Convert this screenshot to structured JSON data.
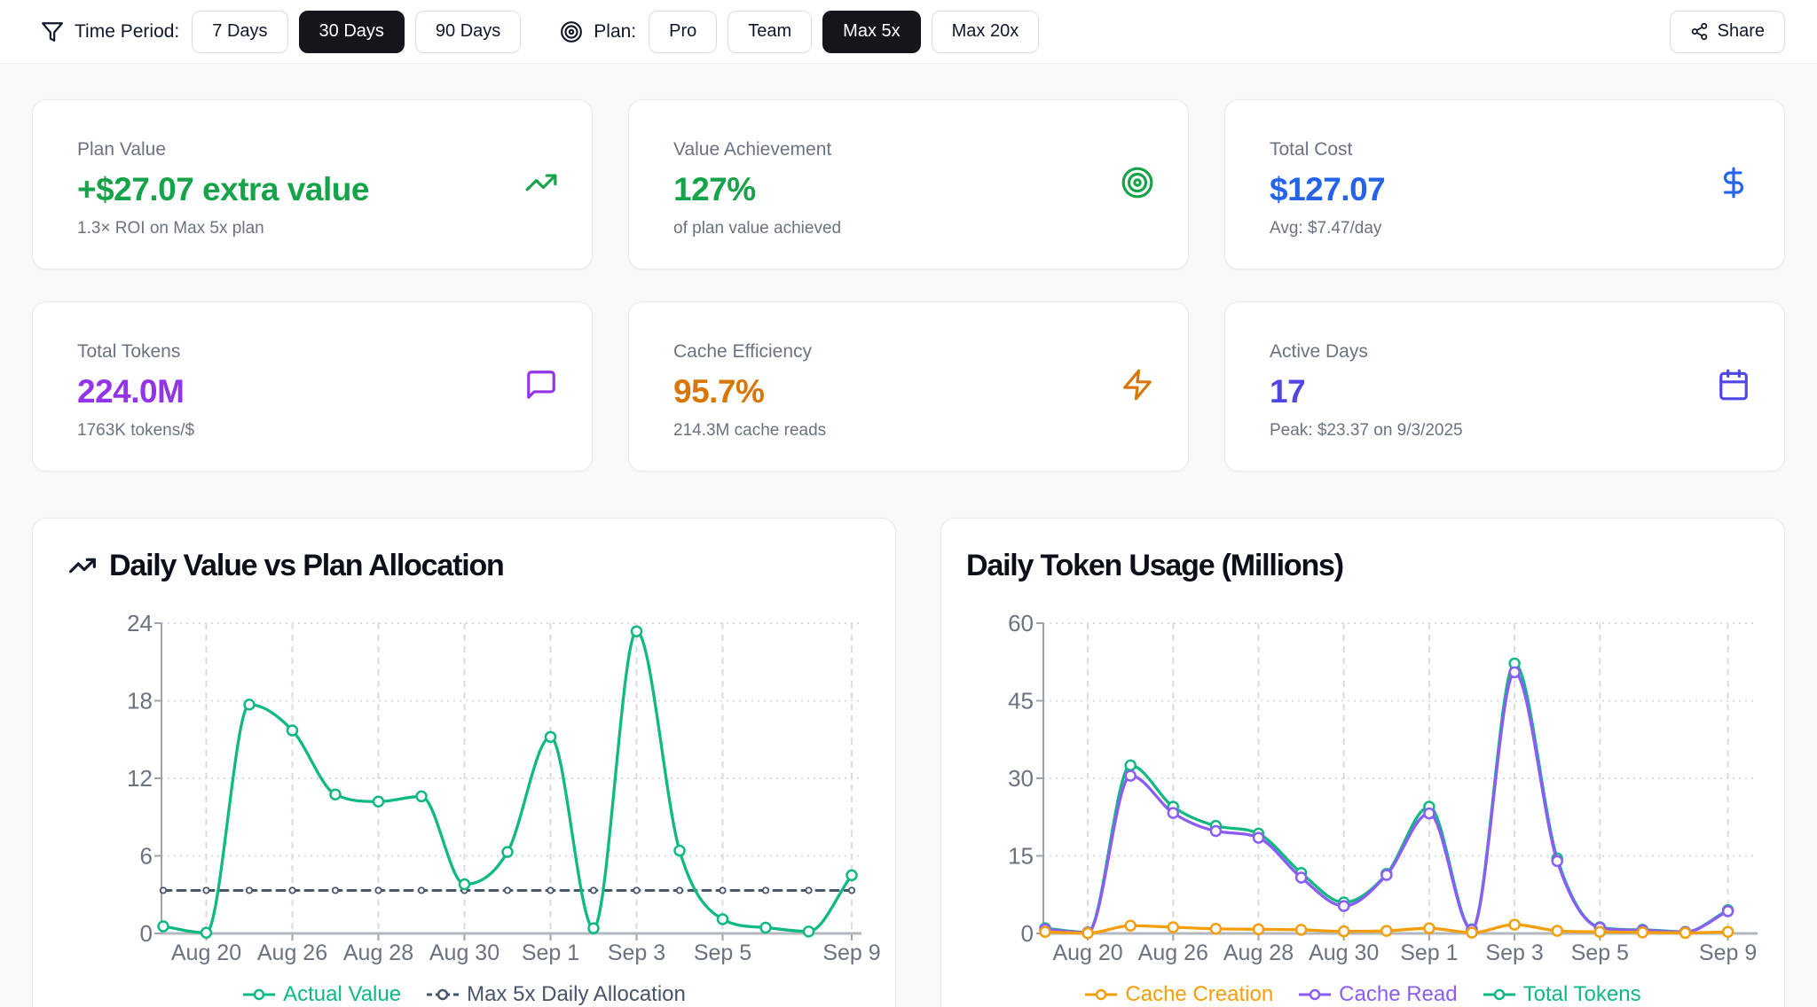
{
  "toolbar": {
    "time_period": {
      "icon": "funnel-icon",
      "label": "Time Period:",
      "options": [
        "7 Days",
        "30 Days",
        "90 Days"
      ],
      "selected": "30 Days"
    },
    "plan": {
      "icon": "target-icon",
      "label": "Plan:",
      "options": [
        "Pro",
        "Team",
        "Max 5x",
        "Max 20x"
      ],
      "selected": "Max 5x"
    },
    "share_label": "Share"
  },
  "stats": [
    {
      "label": "Plan Value",
      "value": "+$27.07 extra value",
      "sub": "1.3× ROI on Max 5x plan",
      "icon": "trending-up-icon",
      "color": "#16a34a"
    },
    {
      "label": "Value Achievement",
      "value": "127%",
      "sub": "of plan value achieved",
      "icon": "target-icon",
      "color": "#16a34a"
    },
    {
      "label": "Total Cost",
      "value": "$127.07",
      "sub": "Avg: $7.47/day",
      "icon": "dollar-sign-icon",
      "color": "#2563eb"
    },
    {
      "label": "Total Tokens",
      "value": "224.0M",
      "sub": "1763K tokens/$",
      "icon": "message-square-icon",
      "color": "#9333ea"
    },
    {
      "label": "Cache Efficiency",
      "value": "95.7%",
      "sub": "214.3M cache reads",
      "icon": "zap-icon",
      "color": "#d97706"
    },
    {
      "label": "Active Days",
      "value": "17",
      "sub": "Peak: $23.37 on 9/3/2025",
      "icon": "calendar-icon",
      "color": "#4f46e5"
    }
  ],
  "chart_data": [
    {
      "type": "line",
      "title": "Daily Value vs Plan Allocation",
      "title_icon": "trending-up-icon",
      "n_points": 17,
      "x_ticks": [
        {
          "i": 1,
          "label": "Aug 20"
        },
        {
          "i": 3,
          "label": "Aug 26"
        },
        {
          "i": 5,
          "label": "Aug 28"
        },
        {
          "i": 7,
          "label": "Aug 30"
        },
        {
          "i": 9,
          "label": "Sep 1"
        },
        {
          "i": 11,
          "label": "Sep 3"
        },
        {
          "i": 13,
          "label": "Sep 5"
        },
        {
          "i": 16,
          "label": "Sep 9"
        }
      ],
      "ylim": [
        0,
        24
      ],
      "yticks": [
        0,
        6,
        12,
        18,
        24
      ],
      "grid": true,
      "legend_position": "bottom",
      "series": [
        {
          "name": "Max 5x Daily Allocation",
          "color": "#475569",
          "line": "dashed",
          "values": [
            3.33,
            3.33,
            3.33,
            3.33,
            3.33,
            3.33,
            3.33,
            3.33,
            3.33,
            3.33,
            3.33,
            3.33,
            3.33,
            3.33,
            3.33,
            3.33,
            3.33
          ]
        },
        {
          "name": "Actual Value",
          "color": "#10b981",
          "line": "solid",
          "values": [
            0.55,
            0.05,
            17.7,
            15.7,
            10.75,
            10.2,
            10.6,
            3.8,
            6.3,
            15.2,
            0.4,
            23.37,
            6.4,
            1.1,
            0.45,
            0.15,
            4.5
          ]
        }
      ],
      "legend_order": [
        "Actual Value",
        "Max 5x Daily Allocation"
      ]
    },
    {
      "type": "line",
      "title": "Daily Token Usage (Millions)",
      "n_points": 17,
      "x_ticks": [
        {
          "i": 1,
          "label": "Aug 20"
        },
        {
          "i": 3,
          "label": "Aug 26"
        },
        {
          "i": 5,
          "label": "Aug 28"
        },
        {
          "i": 7,
          "label": "Aug 30"
        },
        {
          "i": 9,
          "label": "Sep 1"
        },
        {
          "i": 11,
          "label": "Sep 3"
        },
        {
          "i": 13,
          "label": "Sep 5"
        },
        {
          "i": 16,
          "label": "Sep 9"
        }
      ],
      "ylim": [
        0,
        60
      ],
      "yticks": [
        0,
        15,
        30,
        45,
        60
      ],
      "grid": true,
      "legend_position": "bottom",
      "series": [
        {
          "name": "Total Tokens",
          "color": "#10b981",
          "line": "solid",
          "values": [
            1.0,
            0.2,
            32.5,
            24.5,
            20.8,
            19.3,
            11.7,
            6.0,
            11.5,
            24.5,
            0.8,
            52.2,
            14.5,
            1.2,
            0.7,
            0.3,
            4.5
          ]
        },
        {
          "name": "Cache Read",
          "color": "#8b5cf6",
          "line": "solid",
          "values": [
            0.8,
            0.15,
            30.5,
            23.3,
            19.8,
            18.5,
            10.8,
            5.3,
            11.3,
            23.2,
            0.7,
            50.5,
            14.0,
            1.1,
            0.6,
            0.25,
            4.3
          ]
        },
        {
          "name": "Cache Creation",
          "color": "#f59e0b",
          "line": "solid",
          "values": [
            0.3,
            0.05,
            1.5,
            1.2,
            0.9,
            0.8,
            0.7,
            0.4,
            0.5,
            1.0,
            0.15,
            1.7,
            0.5,
            0.3,
            0.2,
            0.1,
            0.3
          ]
        }
      ],
      "legend_order": [
        "Cache Creation",
        "Cache Read",
        "Total Tokens"
      ]
    }
  ]
}
